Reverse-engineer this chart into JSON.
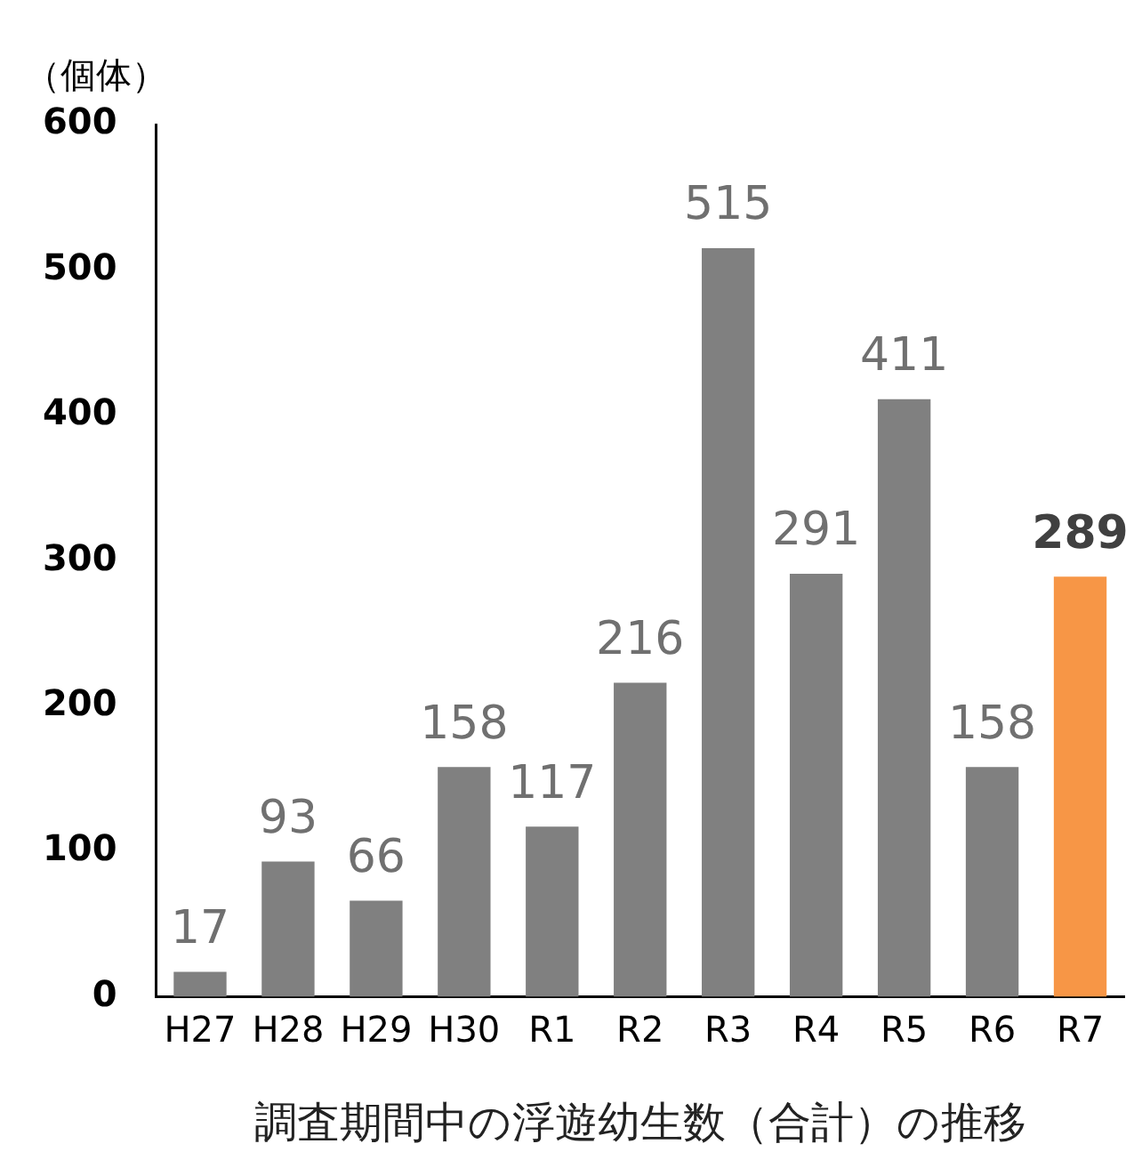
{
  "chart_data": {
    "type": "bar",
    "ylabel": "（個体）",
    "xlabel": "調査期間中の浮遊幼生数（合計）の推移",
    "categories": [
      "H27",
      "H28",
      "H29",
      "H30",
      "R1",
      "R2",
      "R3",
      "R4",
      "R5",
      "R6",
      "R7"
    ],
    "values": [
      17,
      93,
      66,
      158,
      117,
      216,
      515,
      291,
      411,
      158,
      289
    ],
    "colors": [
      "#808080",
      "#808080",
      "#808080",
      "#808080",
      "#808080",
      "#808080",
      "#808080",
      "#808080",
      "#808080",
      "#808080",
      "#f79646"
    ],
    "ylim": [
      0,
      600
    ],
    "yticks": [
      0,
      100,
      200,
      300,
      400,
      500,
      600
    ],
    "grid": false,
    "data_labels": true,
    "legend": false
  }
}
